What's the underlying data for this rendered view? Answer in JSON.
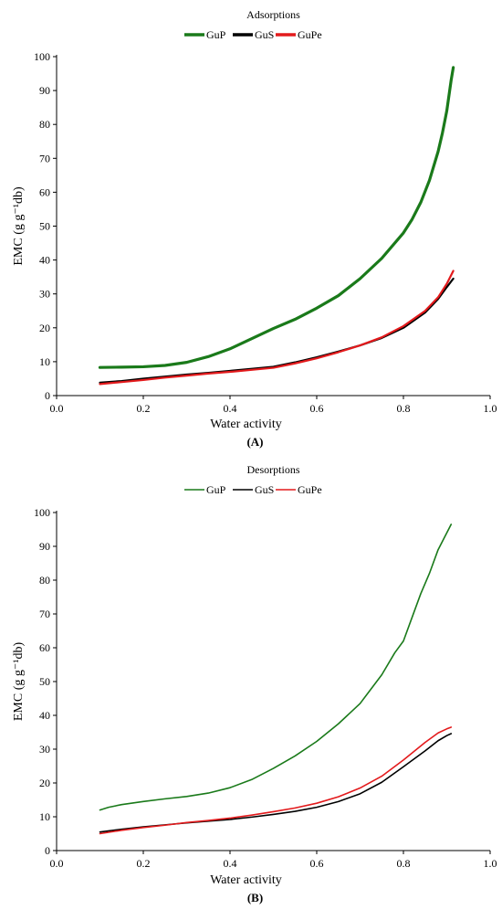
{
  "chart_data": [
    {
      "type": "line",
      "title": "Adsorptions",
      "xlabel": "Water activity",
      "ylabel": "EMC (g g⁻¹db)",
      "panel_label": "(A)",
      "xlim": [
        0,
        1
      ],
      "ylim": [
        0,
        100
      ],
      "x_ticks": [
        "0.0",
        "0.2",
        "0.4",
        "0.6",
        "0.8",
        "1.0"
      ],
      "y_ticks": [
        "0",
        "10",
        "20",
        "30",
        "40",
        "50",
        "60",
        "70",
        "80",
        "90",
        "100"
      ],
      "legend_position": "top",
      "series": [
        {
          "name": "GuP",
          "color": "#1a7a1a",
          "x": [
            0.1,
            0.15,
            0.2,
            0.25,
            0.3,
            0.35,
            0.4,
            0.45,
            0.5,
            0.55,
            0.6,
            0.65,
            0.7,
            0.75,
            0.8,
            0.82,
            0.84,
            0.86,
            0.88,
            0.89,
            0.9,
            0.91,
            0.915
          ],
          "y": [
            8.3,
            8.4,
            8.5,
            8.9,
            9.8,
            11.5,
            13.8,
            16.8,
            19.8,
            22.5,
            25.8,
            29.5,
            34.5,
            40.5,
            48.0,
            52.0,
            57.0,
            63.5,
            72.0,
            77.5,
            84.0,
            93.0,
            96.8
          ]
        },
        {
          "name": "GuS",
          "color": "#000000",
          "x": [
            0.1,
            0.15,
            0.2,
            0.25,
            0.3,
            0.35,
            0.4,
            0.45,
            0.5,
            0.55,
            0.6,
            0.65,
            0.7,
            0.75,
            0.8,
            0.85,
            0.88,
            0.9,
            0.915
          ],
          "y": [
            3.8,
            4.3,
            5.0,
            5.6,
            6.2,
            6.7,
            7.3,
            7.9,
            8.5,
            9.8,
            11.3,
            13.0,
            14.8,
            17.0,
            20.0,
            24.5,
            28.5,
            32.0,
            34.5
          ]
        },
        {
          "name": "GuPe",
          "color": "#e31a1c",
          "x": [
            0.1,
            0.15,
            0.2,
            0.25,
            0.3,
            0.35,
            0.4,
            0.45,
            0.5,
            0.55,
            0.6,
            0.65,
            0.7,
            0.75,
            0.8,
            0.85,
            0.88,
            0.9,
            0.915
          ],
          "y": [
            3.4,
            4.0,
            4.6,
            5.3,
            5.9,
            6.5,
            7.0,
            7.6,
            8.2,
            9.5,
            11.0,
            12.8,
            14.8,
            17.2,
            20.5,
            25.0,
            29.0,
            33.0,
            36.8
          ]
        }
      ]
    },
    {
      "type": "line",
      "title": "Desorptions",
      "xlabel": "Water activity",
      "ylabel": "EMC (g g⁻¹db)",
      "panel_label": "(B)",
      "xlim": [
        0,
        1
      ],
      "ylim": [
        0,
        100
      ],
      "x_ticks": [
        "0.0",
        "0.2",
        "0.4",
        "0.6",
        "0.8",
        "1.0"
      ],
      "y_ticks": [
        "0",
        "10",
        "20",
        "30",
        "40",
        "50",
        "60",
        "70",
        "80",
        "90",
        "100"
      ],
      "legend_position": "top",
      "series": [
        {
          "name": "GuP",
          "color": "#1a7a1a",
          "x": [
            0.1,
            0.12,
            0.15,
            0.2,
            0.25,
            0.3,
            0.35,
            0.4,
            0.45,
            0.5,
            0.55,
            0.6,
            0.65,
            0.7,
            0.75,
            0.78,
            0.8,
            0.82,
            0.84,
            0.86,
            0.88,
            0.9,
            0.91
          ],
          "y": [
            12.0,
            12.8,
            13.6,
            14.5,
            15.3,
            16.0,
            17.0,
            18.6,
            21.0,
            24.3,
            28.0,
            32.3,
            37.5,
            43.5,
            52.0,
            58.5,
            62.0,
            69.0,
            76.0,
            82.0,
            89.0,
            94.0,
            96.5
          ]
        },
        {
          "name": "GuS",
          "color": "#000000",
          "x": [
            0.1,
            0.15,
            0.2,
            0.25,
            0.3,
            0.35,
            0.4,
            0.45,
            0.5,
            0.55,
            0.6,
            0.65,
            0.7,
            0.75,
            0.8,
            0.85,
            0.88,
            0.9,
            0.91
          ],
          "y": [
            5.5,
            6.3,
            7.0,
            7.6,
            8.2,
            8.7,
            9.2,
            9.9,
            10.7,
            11.6,
            12.8,
            14.5,
            16.8,
            20.2,
            24.8,
            29.5,
            32.5,
            34.0,
            34.6
          ]
        },
        {
          "name": "GuPe",
          "color": "#e31a1c",
          "x": [
            0.1,
            0.15,
            0.2,
            0.25,
            0.3,
            0.35,
            0.4,
            0.45,
            0.5,
            0.55,
            0.6,
            0.65,
            0.7,
            0.75,
            0.8,
            0.85,
            0.88,
            0.9,
            0.91
          ],
          "y": [
            5.0,
            6.0,
            6.8,
            7.5,
            8.3,
            8.9,
            9.6,
            10.5,
            11.5,
            12.6,
            14.0,
            15.9,
            18.5,
            22.0,
            26.8,
            32.0,
            34.8,
            36.0,
            36.5
          ]
        }
      ]
    }
  ]
}
